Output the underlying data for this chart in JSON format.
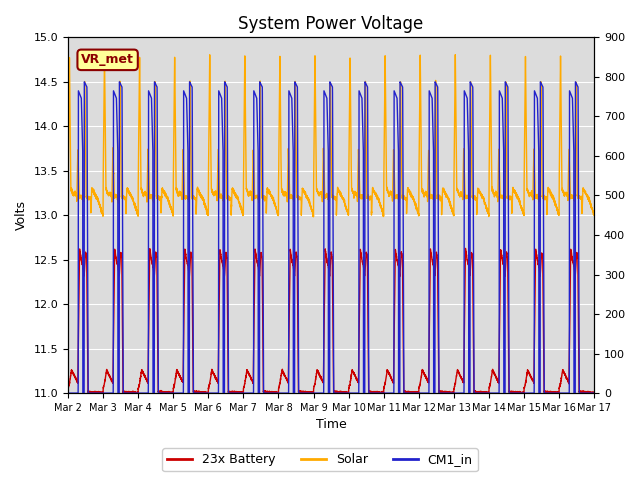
{
  "title": "System Power Voltage",
  "xlabel": "Time",
  "ylabel_left": "Volts",
  "ylim_left": [
    11.0,
    15.0
  ],
  "ylim_right": [
    0,
    900
  ],
  "yticks_left": [
    11.0,
    11.5,
    12.0,
    12.5,
    13.0,
    13.5,
    14.0,
    14.5,
    15.0
  ],
  "yticks_right": [
    0,
    100,
    200,
    300,
    400,
    500,
    600,
    700,
    800,
    900
  ],
  "num_days": 15,
  "xtick_labels": [
    "Mar 2",
    "Mar 3",
    "Mar 4",
    "Mar 5",
    "Mar 6",
    "Mar 7",
    "Mar 8",
    "Mar 9",
    "Mar 10",
    "Mar 11",
    "Mar 12",
    "Mar 13",
    "Mar 14",
    "Mar 15",
    "Mar 16",
    "Mar 17"
  ],
  "annotation_text": "VR_met",
  "battery_color": "#cc0000",
  "solar_color": "#ffaa00",
  "cm1_color": "#2222cc",
  "legend_labels": [
    "23x Battery",
    "Solar",
    "CM1_in"
  ],
  "bg_color": "#dcdcdc",
  "title_fontsize": 12,
  "axis_fontsize": 9,
  "tick_fontsize": 8,
  "legend_fontsize": 9
}
